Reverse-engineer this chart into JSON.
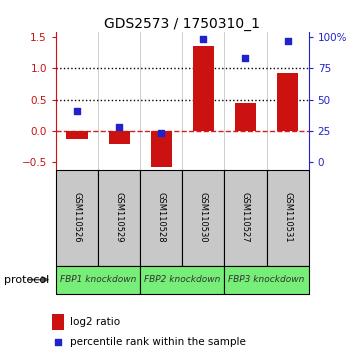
{
  "title": "GDS2573 / 1750310_1",
  "samples": [
    "GSM110526",
    "GSM110529",
    "GSM110528",
    "GSM110530",
    "GSM110527",
    "GSM110531"
  ],
  "log2_ratio": [
    -0.13,
    -0.2,
    -0.57,
    1.35,
    0.44,
    0.92
  ],
  "percentile_rank": [
    0.32,
    0.07,
    -0.03,
    1.47,
    1.17,
    1.44
  ],
  "bar_color": "#cc1111",
  "dot_color": "#2222cc",
  "hline_color": "#cc2222",
  "dotted_line_color": "#000000",
  "ylim": [
    -0.62,
    1.58
  ],
  "yticks_left": [
    -0.5,
    0.0,
    0.5,
    1.0,
    1.5
  ],
  "yticks_right": [
    0,
    25,
    50,
    75,
    100
  ],
  "protocol_label": "protocol",
  "legend_bar_label": "log2 ratio",
  "legend_dot_label": "percentile rank within the sample",
  "bg_color": "#ffffff",
  "sample_box_color": "#c8c8c8",
  "group_box_color": "#77ee77",
  "title_fontsize": 10
}
